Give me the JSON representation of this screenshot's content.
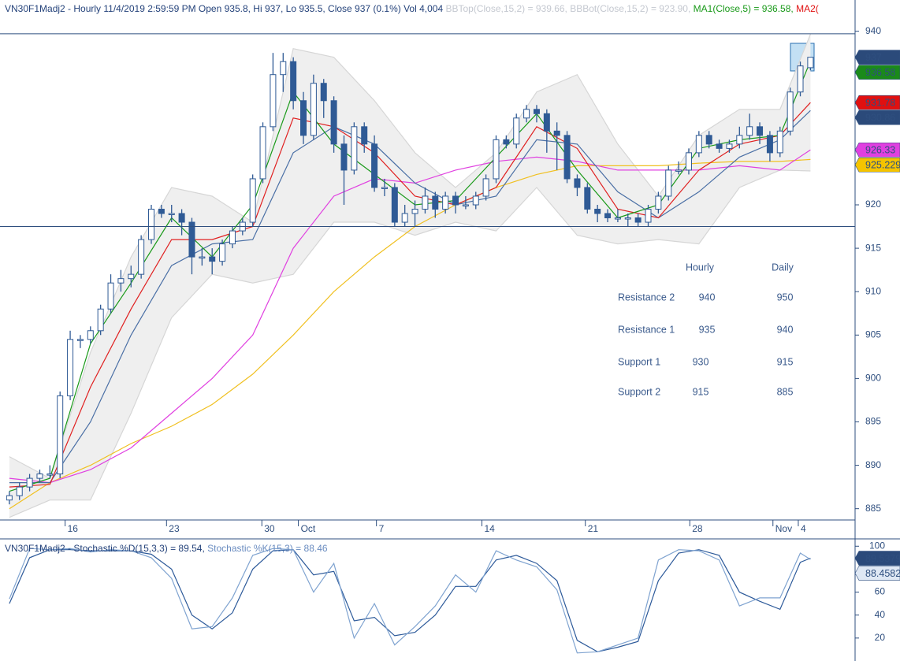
{
  "chart_data": [
    {
      "type": "candlestick",
      "title_parts": [
        {
          "text": "VN30F1Madj2 - Hourly 11/4/2019 2:59:59 PM Open 935.8, Hi 937, Lo 935.5, Close 937 (0.1%) Vol 4,004",
          "color": "#24427a"
        },
        {
          "text": " BBTop(Close,15,2) = 939.66,",
          "color": "#c4c8d0"
        },
        {
          "text": " BBBot(Close,15,2) = 923.90,",
          "color": "#c4c8d0"
        },
        {
          "text": " MA1(Close,5) = 936.58,",
          "color": "#1a9a1a"
        },
        {
          "text": " MA2(",
          "color": "#e01010"
        }
      ],
      "xlim": [
        -0.3,
        83.4
      ],
      "ylim": [
        883.7,
        940.6
      ],
      "yticks": [
        940,
        920,
        915,
        910,
        905,
        900,
        895,
        890,
        885
      ],
      "xticks": [
        {
          "value": 5.5,
          "label": "16"
        },
        {
          "value": 15.5,
          "label": "23"
        },
        {
          "value": 24.9,
          "label": "30"
        },
        {
          "value": 28.5,
          "label": "Oct"
        },
        {
          "value": 36.2,
          "label": "7"
        },
        {
          "value": 46.6,
          "label": "14"
        },
        {
          "value": 56.8,
          "label": "21"
        },
        {
          "value": 67.1,
          "label": "28"
        },
        {
          "value": 75.3,
          "label": "Nov"
        },
        {
          "value": 77.8,
          "label": "4"
        }
      ],
      "candle_color": "#2f5a95",
      "close_tag_color": "#2b4a7a",
      "ohlc": [
        [
          886,
          887,
          885.5,
          886.5
        ],
        [
          886.5,
          888,
          886,
          887.5
        ],
        [
          887.5,
          889,
          887,
          888.5
        ],
        [
          888.5,
          889.5,
          888,
          889
        ],
        [
          889,
          890,
          888.5,
          889
        ],
        [
          889,
          898.5,
          888.5,
          898
        ],
        [
          898,
          905.5,
          897.5,
          904.5
        ],
        [
          904.5,
          905,
          903.5,
          904.5
        ],
        [
          904.5,
          906,
          904,
          905.5
        ],
        [
          905.5,
          908.5,
          905,
          908
        ],
        [
          908,
          912,
          907.5,
          911
        ],
        [
          911,
          912.5,
          910,
          911.5
        ],
        [
          911.5,
          913,
          910.5,
          912
        ],
        [
          912,
          916.5,
          911.5,
          916
        ],
        [
          916,
          920,
          915.5,
          919.5
        ],
        [
          919.5,
          920,
          918.5,
          919
        ],
        [
          919,
          920,
          918,
          919
        ],
        [
          919,
          919.5,
          916.5,
          918
        ],
        [
          918,
          918.5,
          912,
          914
        ],
        [
          914,
          915,
          913,
          914
        ],
        [
          914,
          915,
          912,
          913.5
        ],
        [
          913.5,
          916,
          913,
          915.5
        ],
        [
          915.5,
          917.5,
          915,
          917
        ],
        [
          917,
          918.5,
          916.5,
          918
        ],
        [
          918,
          923.5,
          917.5,
          923
        ],
        [
          923,
          929.5,
          922.5,
          929
        ],
        [
          929,
          937.5,
          928.5,
          935
        ],
        [
          935,
          937.5,
          933,
          936.5
        ],
        [
          936.5,
          937,
          931,
          932
        ],
        [
          932,
          933,
          927,
          928
        ],
        [
          928,
          935,
          927.5,
          934
        ],
        [
          934,
          934.5,
          930,
          932
        ],
        [
          932,
          932.5,
          926,
          927
        ],
        [
          927,
          928,
          920,
          924
        ],
        [
          924,
          929.5,
          923.5,
          929
        ],
        [
          929,
          929.5,
          926,
          927
        ],
        [
          927,
          928,
          921.5,
          922
        ],
        [
          922,
          923,
          921,
          922
        ],
        [
          922,
          922.5,
          917.5,
          918
        ],
        [
          918,
          920,
          917.5,
          919
        ],
        [
          919,
          920.5,
          917.5,
          919.5
        ],
        [
          919.5,
          922,
          919,
          921
        ],
        [
          921,
          921.5,
          918.5,
          919.5
        ],
        [
          919.5,
          921.5,
          919,
          921
        ],
        [
          921,
          921.5,
          919,
          920
        ],
        [
          920,
          921,
          919.5,
          920
        ],
        [
          920,
          921.5,
          919.5,
          921
        ],
        [
          921,
          923.5,
          920.5,
          923
        ],
        [
          923,
          928,
          922.5,
          927.5
        ],
        [
          927.5,
          928,
          926.5,
          927
        ],
        [
          927,
          930.5,
          926.5,
          930
        ],
        [
          930,
          931.5,
          929.5,
          931
        ],
        [
          931,
          931.5,
          929.5,
          930.5
        ],
        [
          930.5,
          931,
          926,
          928.5
        ],
        [
          928.5,
          929.5,
          924,
          928
        ],
        [
          928,
          928.5,
          922.5,
          923
        ],
        [
          923,
          923.5,
          921,
          922
        ],
        [
          922,
          922.5,
          919,
          919.5
        ],
        [
          919.5,
          920,
          918,
          919
        ],
        [
          919,
          919.5,
          918,
          918.5
        ],
        [
          918.5,
          919.5,
          918,
          918.5
        ],
        [
          918.5,
          919,
          917.5,
          918.5
        ],
        [
          918.5,
          919,
          917.5,
          918
        ],
        [
          918,
          920,
          917.5,
          919.5
        ],
        [
          919.5,
          921.5,
          919,
          921
        ],
        [
          921,
          924.5,
          920.5,
          924
        ],
        [
          924,
          925,
          923.5,
          924
        ],
        [
          924,
          926.5,
          923.5,
          926
        ],
        [
          926,
          928.5,
          925.5,
          928
        ],
        [
          928,
          928.5,
          926.5,
          927
        ],
        [
          927,
          927.5,
          926,
          926.5
        ],
        [
          926.5,
          927.5,
          926,
          927
        ],
        [
          927,
          929,
          926.5,
          928
        ],
        [
          928,
          930.5,
          927.5,
          929
        ],
        [
          929,
          929.5,
          927,
          928
        ],
        [
          928,
          928.5,
          925,
          926
        ],
        [
          926,
          929,
          925.5,
          928.5
        ],
        [
          928.5,
          933.5,
          928,
          933
        ],
        [
          933,
          936.5,
          932.5,
          936
        ],
        [
          935.8,
          937,
          935.5,
          937
        ]
      ],
      "x": [
        0,
        4,
        8,
        12,
        16,
        20,
        24,
        28,
        32,
        36,
        40,
        44,
        48,
        52,
        56,
        60,
        64,
        68,
        72,
        76,
        79
      ],
      "band": {
        "color": "#efefef",
        "edge": "#d6d6d6"
      },
      "series": [
        {
          "name": "BBTop(Close,15,2)",
          "color": "#d6d6d6",
          "values": [
            891,
            888.5,
            903,
            914,
            922,
            921,
            918,
            938,
            937,
            932,
            926,
            922,
            926,
            933,
            935,
            927,
            921,
            928,
            931,
            931,
            939.66
          ]
        },
        {
          "name": "BBBot(Close,15,2)",
          "color": "#d6d6d6",
          "values": [
            884,
            886,
            886,
            896,
            907,
            912,
            911,
            912,
            918,
            918,
            916.5,
            918,
            917,
            922,
            916.5,
            915.5,
            916,
            915.5,
            922,
            924,
            923.9
          ]
        },
        {
          "color": "#f0c020",
          "tag_color": "#f5c400",
          "tag_text": "#333333",
          "values": [
            885,
            888,
            890,
            892.5,
            894.5,
            897,
            900.5,
            905,
            910,
            914,
            917.5,
            920,
            922,
            923.5,
            924.5,
            924.5,
            924.5,
            924.8,
            925,
            925,
            925.229
          ]
        },
        {
          "color": "#e040e0",
          "tag_color": "#e040e0",
          "tag_text": "#333333",
          "values": [
            888.5,
            888,
            889.5,
            892,
            896,
            900,
            905,
            915,
            921,
            923,
            922.5,
            924,
            925,
            925.5,
            925,
            924,
            924,
            924,
            924.5,
            924,
            926.33
          ]
        },
        {
          "color": "#4a6fa5",
          "tag_color": "#2b4a7a",
          "tag_text": "#ffffff",
          "values": [
            888,
            888,
            895,
            905,
            913,
            915.5,
            916,
            926,
            929,
            927,
            922.5,
            920,
            921,
            927.5,
            927,
            921.5,
            918.5,
            921.5,
            925.5,
            927.5,
            930.86
          ]
        },
        {
          "name": "MA2(",
          "color": "#e02020",
          "tag_color": "#e01010",
          "tag_text": "#333333",
          "values": [
            887.5,
            887.8,
            899,
            908,
            916,
            916,
            917.5,
            930,
            929,
            926,
            921,
            920,
            922,
            929,
            926.5,
            919.5,
            918.5,
            924,
            927,
            928,
            931.78
          ]
        },
        {
          "name": "MA1(Close,5)",
          "color": "#1a9a1a",
          "tag_color": "#1a8a1a",
          "tag_text": "#ffffff",
          "values": [
            887,
            888.5,
            904,
            911,
            918.5,
            914,
            920,
            933,
            927,
            923.5,
            920,
            920.5,
            925.5,
            930.5,
            924,
            918.5,
            920,
            926.5,
            927.5,
            928,
            936.58
          ]
        }
      ],
      "hlines": [
        939.7,
        917.5
      ],
      "hline_color": "#2f4f7f",
      "table": {
        "columns": [
          "Hourly",
          "Daily"
        ],
        "rows": [
          {
            "label": "Resistance 2",
            "values": [
              940,
              950
            ]
          },
          {
            "label": "Resistance 1",
            "values": [
              935,
              940
            ]
          },
          {
            "label": "Support 1",
            "values": [
              930,
              915
            ]
          },
          {
            "label": "Support 2",
            "values": [
              915,
              885
            ]
          }
        ]
      }
    },
    {
      "type": "line",
      "title_parts": [
        {
          "text": "VN30F1Madj2 - Stochastic %D(15,3,3) = 89.54,",
          "color": "#24427a"
        },
        {
          "text": " Stochastic %K(15,3) = 88.46",
          "color": "#6a8cc0"
        }
      ],
      "xlim": [
        -0.3,
        83.4
      ],
      "ylim": [
        0,
        105
      ],
      "yticks": [
        100,
        60,
        40,
        20
      ],
      "x": [
        0,
        2,
        4,
        6,
        8,
        10,
        12,
        14,
        16,
        18,
        20,
        22,
        24,
        26,
        28,
        30,
        32,
        34,
        36,
        38,
        40,
        42,
        44,
        46,
        48,
        50,
        52,
        54,
        56,
        58,
        60,
        62,
        64,
        66,
        68,
        70,
        72,
        74,
        76,
        78,
        79
      ],
      "series": [
        {
          "color": "#2d5a9a",
          "tag_color": "#2b4a7a",
          "tag_text": "#ffffff",
          "values": [
            50,
            90,
            97,
            97,
            96,
            96,
            96,
            93,
            80,
            40,
            28,
            42,
            80,
            96,
            97,
            75,
            78,
            35,
            38,
            22,
            25,
            40,
            65,
            65,
            88,
            92,
            85,
            70,
            18,
            8,
            12,
            17,
            70,
            94,
            97,
            92,
            60,
            52,
            45,
            86,
            89.5379
          ]
        },
        {
          "color": "#7fa3d0",
          "tag_color": "#dfe8f4",
          "tag_text": "#2b4a7a",
          "values": [
            54,
            98,
            97,
            98,
            95,
            97,
            96,
            90,
            72,
            28,
            30,
            55,
            92,
            98,
            97,
            60,
            85,
            20,
            50,
            14,
            30,
            48,
            75,
            60,
            96,
            88,
            82,
            62,
            7,
            8,
            14,
            20,
            88,
            97,
            96,
            88,
            48,
            55,
            55,
            94,
            88.4582
          ]
        }
      ]
    }
  ]
}
